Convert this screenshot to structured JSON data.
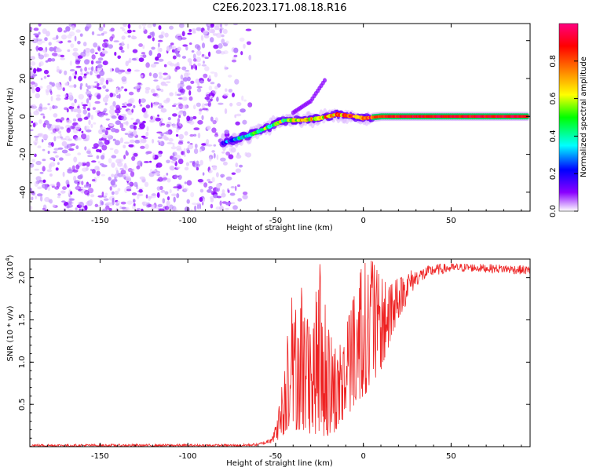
{
  "title": "C2E6.2023.171.08.18.R16",
  "chart_data": [
    {
      "type": "heatmap",
      "xlabel": "Height of straight line (km)",
      "ylabel": "Frequency (Hz)",
      "xlim": [
        -190,
        95
      ],
      "ylim": [
        -50,
        49
      ],
      "x_ticks": [
        -150,
        -100,
        -50,
        0,
        50
      ],
      "y_ticks": [
        -40,
        -20,
        0,
        20,
        40
      ],
      "colorbar": {
        "label": "Normalized spectral amplitude",
        "range": [
          0,
          1
        ],
        "ticks": [
          "0.0",
          "0.2",
          "0.4",
          "0.6",
          "0.8"
        ],
        "colors": [
          "#ffffff",
          "#8a00ff",
          "#0000ff",
          "#00ffff",
          "#00ff00",
          "#ffff00",
          "#ff8000",
          "#ff0000",
          "#ff0080"
        ]
      },
      "features": [
        {
          "name": "noise_region",
          "x_range": [
            -190,
            -70
          ],
          "freq_range": [
            -50,
            49
          ],
          "amplitude": 0.1
        },
        {
          "name": "signal_track",
          "x": [
            -80,
            -65,
            -55,
            -45,
            -35,
            -25,
            -15,
            -5,
            0,
            10,
            30,
            50,
            70,
            94
          ],
          "freq": [
            -14,
            -10,
            -6,
            -2,
            -2,
            -1,
            1,
            0,
            -1,
            0,
            0,
            0,
            0,
            0
          ],
          "amplitude": [
            0.25,
            0.45,
            0.5,
            0.55,
            0.6,
            0.65,
            0.75,
            0.8,
            0.8,
            0.85,
            0.9,
            0.9,
            0.9,
            0.9
          ]
        },
        {
          "name": "branch",
          "x": [
            -40,
            -30,
            -22
          ],
          "freq": [
            2,
            8,
            19
          ],
          "amplitude": [
            0.3,
            0.3,
            0.2
          ]
        }
      ]
    },
    {
      "type": "line",
      "xlabel": "Height of straight line (km)",
      "ylabel": "SNR (10 * v/v)",
      "multiplier": "(x10",
      "multiplier_exp": "4",
      "multiplier_close": ")",
      "xlim": [
        -190,
        95
      ],
      "ylim": [
        0,
        2.22
      ],
      "x_ticks": [
        -150,
        -100,
        -50,
        0,
        50
      ],
      "y_ticks": [
        "0.5",
        "1.0",
        "1.5",
        "2.0"
      ],
      "line_color": "#ee2222",
      "envelope": {
        "x": [
          -190,
          -70,
          -60,
          -55,
          -50,
          -45,
          -42,
          -40,
          -35,
          -30,
          -25,
          -20,
          -15,
          -10,
          -5,
          0,
          5,
          10,
          15,
          20,
          25,
          30,
          40,
          50,
          60,
          70,
          80,
          95
        ],
        "min": [
          0.0,
          0.0,
          0.01,
          0.03,
          0.05,
          0.15,
          0.25,
          0.2,
          0.2,
          0.15,
          0.15,
          0.1,
          0.2,
          0.3,
          0.5,
          0.6,
          0.7,
          0.9,
          1.2,
          1.5,
          1.7,
          1.9,
          2.02,
          2.06,
          2.07,
          2.06,
          2.05,
          2.03
        ],
        "max": [
          0.03,
          0.03,
          0.04,
          0.08,
          0.25,
          0.9,
          2.2,
          1.5,
          1.9,
          1.3,
          2.2,
          1.4,
          1.1,
          1.4,
          1.8,
          2.2,
          2.2,
          2.0,
          1.9,
          2.0,
          2.1,
          2.1,
          2.16,
          2.17,
          2.17,
          2.16,
          2.16,
          2.14
        ]
      }
    }
  ]
}
